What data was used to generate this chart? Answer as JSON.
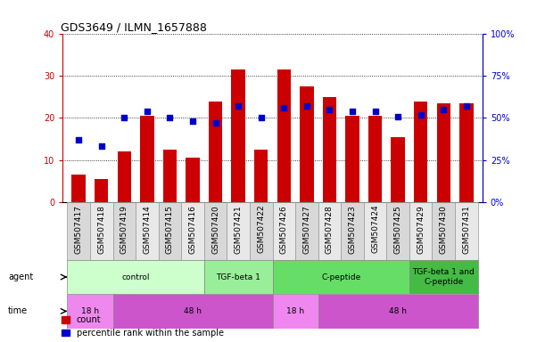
{
  "title": "GDS3649 / ILMN_1657888",
  "samples": [
    "GSM507417",
    "GSM507418",
    "GSM507419",
    "GSM507414",
    "GSM507415",
    "GSM507416",
    "GSM507420",
    "GSM507421",
    "GSM507422",
    "GSM507426",
    "GSM507427",
    "GSM507428",
    "GSM507423",
    "GSM507424",
    "GSM507425",
    "GSM507429",
    "GSM507430",
    "GSM507431"
  ],
  "counts": [
    6.5,
    5.5,
    12.0,
    20.5,
    12.5,
    10.5,
    24.0,
    31.5,
    12.5,
    31.5,
    27.5,
    25.0,
    20.5,
    20.5,
    15.5,
    24.0,
    23.5,
    23.5
  ],
  "percentiles": [
    37,
    33,
    50,
    54,
    50,
    48,
    47,
    57,
    50,
    56,
    57,
    55,
    54,
    54,
    51,
    52,
    55,
    57
  ],
  "bar_color": "#cc0000",
  "dot_color": "#0000cc",
  "ylim_left": [
    0,
    40
  ],
  "ylim_right": [
    0,
    100
  ],
  "yticks_left": [
    0,
    10,
    20,
    30,
    40
  ],
  "yticks_right": [
    0,
    25,
    50,
    75,
    100
  ],
  "yticklabels_right": [
    "0%",
    "25%",
    "50%",
    "75%",
    "100%"
  ],
  "agent_groups": [
    {
      "label": "control",
      "start": 0,
      "end": 6,
      "color": "#ccffcc"
    },
    {
      "label": "TGF-beta 1",
      "start": 6,
      "end": 9,
      "color": "#99ee99"
    },
    {
      "label": "C-peptide",
      "start": 9,
      "end": 15,
      "color": "#66dd66"
    },
    {
      "label": "TGF-beta 1 and\nC-peptide",
      "start": 15,
      "end": 18,
      "color": "#44bb44"
    }
  ],
  "time_groups": [
    {
      "label": "18 h",
      "start": 0,
      "end": 2,
      "color": "#ee88ee"
    },
    {
      "label": "48 h",
      "start": 2,
      "end": 9,
      "color": "#cc55cc"
    },
    {
      "label": "18 h",
      "start": 9,
      "end": 11,
      "color": "#ee88ee"
    },
    {
      "label": "48 h",
      "start": 11,
      "end": 18,
      "color": "#cc55cc"
    }
  ],
  "legend_count_color": "#cc0000",
  "legend_dot_color": "#0000cc"
}
